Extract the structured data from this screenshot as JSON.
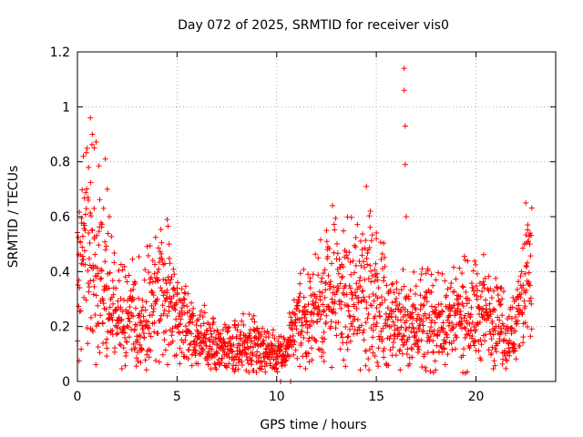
{
  "chart_data": {
    "type": "scatter",
    "title": "Day 072 of 2025, SRMTID for receiver vis0",
    "xlabel": "GPS time / hours",
    "ylabel": "SRMTID / TECUs",
    "xlim": [
      0,
      24
    ],
    "ylim": [
      0,
      1.2
    ],
    "xticks": [
      0,
      5,
      10,
      15,
      20
    ],
    "yticks": [
      0,
      0.2,
      0.4,
      0.6,
      0.8,
      1,
      1.2
    ],
    "xtick_labels": [
      "0",
      "5",
      "10",
      "15",
      "20"
    ],
    "ytick_labels": [
      "0",
      "0.2",
      "0.4",
      "0.6",
      "0.8",
      "1",
      "1.2"
    ],
    "grid": true,
    "marker": "plus",
    "series_color": "#ff0000",
    "series": [
      {
        "name": "SRMTID",
        "x_range": [
          0,
          22.8
        ],
        "profile": [
          [
            0.0,
            0.36
          ],
          [
            0.5,
            0.5
          ],
          [
            0.8,
            0.45
          ],
          [
            1.2,
            0.38
          ],
          [
            1.5,
            0.3
          ],
          [
            2.0,
            0.25
          ],
          [
            3.0,
            0.22
          ],
          [
            3.5,
            0.25
          ],
          [
            4.0,
            0.32
          ],
          [
            4.5,
            0.3
          ],
          [
            5.0,
            0.22
          ],
          [
            6.0,
            0.16
          ],
          [
            7.0,
            0.12
          ],
          [
            8.0,
            0.12
          ],
          [
            9.0,
            0.14
          ],
          [
            10.0,
            0.09
          ],
          [
            10.5,
            0.11
          ],
          [
            11.0,
            0.2
          ],
          [
            12.0,
            0.25
          ],
          [
            12.5,
            0.3
          ],
          [
            13.5,
            0.3
          ],
          [
            14.5,
            0.35
          ],
          [
            15.0,
            0.28
          ],
          [
            16.0,
            0.2
          ],
          [
            17.0,
            0.22
          ],
          [
            18.0,
            0.2
          ],
          [
            19.0,
            0.22
          ],
          [
            20.0,
            0.25
          ],
          [
            21.0,
            0.22
          ],
          [
            21.5,
            0.15
          ],
          [
            22.0,
            0.2
          ],
          [
            22.5,
            0.35
          ],
          [
            22.8,
            0.4
          ]
        ],
        "highlights": [
          {
            "x": 0.3,
            "y": 0.82
          },
          {
            "x": 0.55,
            "y": 0.66
          },
          {
            "x": 0.65,
            "y": 0.96
          },
          {
            "x": 0.75,
            "y": 0.9
          },
          {
            "x": 0.85,
            "y": 0.85
          },
          {
            "x": 1.4,
            "y": 0.81
          },
          {
            "x": 1.5,
            "y": 0.7
          },
          {
            "x": 1.6,
            "y": 0.6
          },
          {
            "x": 4.5,
            "y": 0.59
          },
          {
            "x": 4.6,
            "y": 0.5
          },
          {
            "x": 12.5,
            "y": 0.55
          },
          {
            "x": 12.8,
            "y": 0.64
          },
          {
            "x": 14.5,
            "y": 0.71
          },
          {
            "x": 14.7,
            "y": 0.62
          },
          {
            "x": 15.0,
            "y": 0.52
          },
          {
            "x": 16.4,
            "y": 1.14
          },
          {
            "x": 16.4,
            "y": 1.06
          },
          {
            "x": 16.45,
            "y": 0.93
          },
          {
            "x": 16.45,
            "y": 0.79
          },
          {
            "x": 16.5,
            "y": 0.6
          },
          {
            "x": 22.5,
            "y": 0.65
          },
          {
            "x": 22.6,
            "y": 0.57
          },
          {
            "x": 22.7,
            "y": 0.5
          }
        ],
        "zero_points": [
          {
            "x": 10.2,
            "y": 0.0
          },
          {
            "x": 10.7,
            "y": 0.0
          }
        ]
      }
    ]
  }
}
